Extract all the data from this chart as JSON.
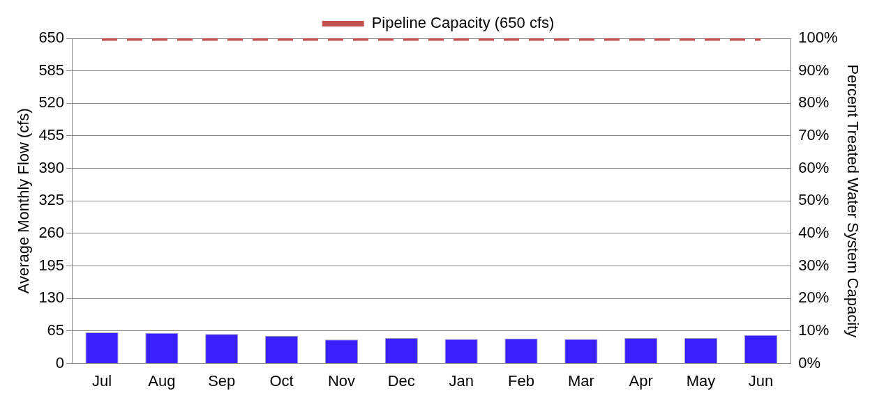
{
  "chart_data": {
    "type": "bar",
    "categories": [
      "Jul",
      "Aug",
      "Sep",
      "Oct",
      "Nov",
      "Dec",
      "Jan",
      "Feb",
      "Mar",
      "Apr",
      "May",
      "Jun"
    ],
    "series": [
      {
        "color": "#3a1fff",
        "values": [
          62,
          61,
          59,
          55,
          48,
          51,
          49,
          50,
          49,
          51,
          51,
          57
        ]
      },
      {
        "type": "line",
        "name": "Pipeline Capacity (650 cfs)",
        "color": "#c0504d",
        "line_style": "dashed",
        "marker": "none",
        "values": [
          650,
          650,
          650,
          650,
          650,
          650,
          650,
          650,
          650,
          650,
          650,
          650
        ]
      }
    ],
    "ylabel": "Average Monthly Flow (cfs)",
    "y2label": "Percent Treated Water System Capacity",
    "ylim": [
      0,
      650
    ],
    "yticks": [
      0,
      65,
      130,
      195,
      260,
      325,
      390,
      455,
      520,
      585,
      650
    ],
    "y2lim": [
      0,
      100
    ],
    "y2ticks": [
      {
        "value": 0,
        "label": "0%"
      },
      {
        "value": 10,
        "label": "10%"
      },
      {
        "value": 20,
        "label": "20%"
      },
      {
        "value": 30,
        "label": "30%"
      },
      {
        "value": 40,
        "label": "40%"
      },
      {
        "value": 50,
        "label": "50%"
      },
      {
        "value": 60,
        "label": "60%"
      },
      {
        "value": 70,
        "label": "70%"
      },
      {
        "value": 80,
        "label": "80%"
      },
      {
        "value": 90,
        "label": "90%"
      },
      {
        "value": 100,
        "label": "100%"
      }
    ],
    "grid": "y",
    "legend": "top"
  }
}
